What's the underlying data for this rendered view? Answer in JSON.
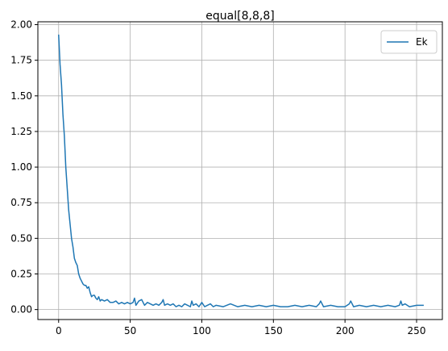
{
  "chart_data": {
    "type": "line",
    "title": "equal[8,8,8]",
    "xlabel": "",
    "ylabel": "",
    "xlim": [
      -14.5,
      268
    ],
    "ylim": [
      -0.07,
      2.02
    ],
    "xticks": [
      0,
      50,
      100,
      150,
      200,
      250
    ],
    "yticks": [
      0.0,
      0.25,
      0.5,
      0.75,
      1.0,
      1.25,
      1.5,
      1.75,
      2.0
    ],
    "grid": true,
    "legend_position": "top-right",
    "series": [
      {
        "name": "Ek",
        "color": "#1f77b4",
        "x": [
          0,
          1,
          2,
          3,
          4,
          5,
          6,
          7,
          8,
          9,
          10,
          11,
          12,
          13,
          14,
          15,
          16,
          17,
          18,
          19,
          20,
          21,
          22,
          23,
          24,
          25,
          26,
          27,
          28,
          29,
          30,
          32,
          34,
          36,
          38,
          40,
          42,
          44,
          46,
          48,
          50,
          52,
          53,
          54,
          56,
          58,
          60,
          62,
          64,
          66,
          68,
          70,
          72,
          73,
          74,
          76,
          78,
          80,
          82,
          84,
          86,
          88,
          90,
          92,
          93,
          94,
          96,
          98,
          100,
          102,
          104,
          106,
          108,
          110,
          115,
          120,
          125,
          130,
          135,
          140,
          145,
          150,
          155,
          160,
          165,
          170,
          175,
          180,
          182,
          183,
          185,
          190,
          195,
          200,
          203,
          204,
          206,
          210,
          215,
          220,
          225,
          230,
          235,
          238,
          239,
          240,
          242,
          245,
          250,
          255
        ],
        "y": [
          1.93,
          1.72,
          1.58,
          1.37,
          1.22,
          1.0,
          0.85,
          0.7,
          0.6,
          0.5,
          0.44,
          0.36,
          0.33,
          0.31,
          0.25,
          0.22,
          0.2,
          0.18,
          0.17,
          0.17,
          0.15,
          0.16,
          0.12,
          0.09,
          0.1,
          0.1,
          0.08,
          0.07,
          0.09,
          0.06,
          0.07,
          0.06,
          0.07,
          0.05,
          0.05,
          0.06,
          0.04,
          0.05,
          0.04,
          0.05,
          0.04,
          0.05,
          0.08,
          0.03,
          0.06,
          0.07,
          0.03,
          0.05,
          0.04,
          0.03,
          0.04,
          0.03,
          0.05,
          0.07,
          0.03,
          0.04,
          0.03,
          0.04,
          0.02,
          0.03,
          0.02,
          0.04,
          0.03,
          0.02,
          0.06,
          0.03,
          0.04,
          0.02,
          0.05,
          0.02,
          0.03,
          0.04,
          0.02,
          0.03,
          0.02,
          0.04,
          0.02,
          0.03,
          0.02,
          0.03,
          0.02,
          0.03,
          0.02,
          0.02,
          0.03,
          0.02,
          0.03,
          0.02,
          0.04,
          0.06,
          0.02,
          0.03,
          0.02,
          0.02,
          0.04,
          0.06,
          0.02,
          0.03,
          0.02,
          0.03,
          0.02,
          0.03,
          0.02,
          0.03,
          0.06,
          0.03,
          0.04,
          0.02,
          0.03,
          0.03
        ]
      }
    ]
  }
}
